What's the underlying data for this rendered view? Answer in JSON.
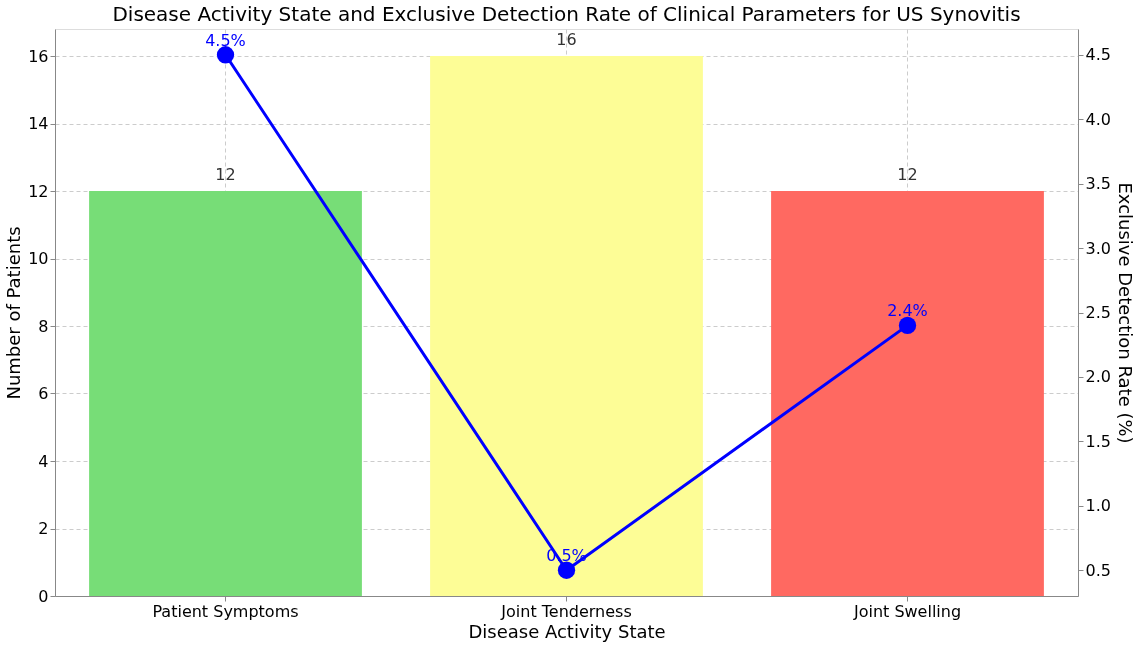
{
  "chart_data": {
    "type": "bar",
    "title": "Disease Activity State and Exclusive Detection Rate of Clinical Parameters for US Synovitis",
    "xlabel": "Disease Activity State",
    "ylabel": "Number of Patients",
    "y2label": "Exclusive Detection Rate (%)",
    "categories": [
      "Patient Symptoms",
      "Joint Tenderness",
      "Joint Swelling"
    ],
    "series": [
      {
        "colors": [
          "#77dd77",
          "#fdfd96",
          "#ff6961"
        ],
        "values": [
          12,
          16,
          12
        ]
      },
      {
        "type": "line",
        "axis": "y2",
        "color": "#0000ff",
        "values": [
          4.5,
          0.5,
          2.4
        ],
        "value_labels": [
          "4.5%",
          "0.5%",
          "2.4%"
        ],
        "marker": "circle",
        "line_style": "solid"
      }
    ],
    "data_labels": true,
    "ylim": [
      0,
      16.8
    ],
    "yticks": [
      0,
      2,
      4,
      6,
      8,
      10,
      12,
      14,
      16
    ],
    "y2lim": [
      0.3,
      4.7
    ],
    "y2ticks": [
      0.5,
      {
        "value": 1,
        "label": "1.0"
      },
      1.5,
      {
        "value": 2,
        "label": "2.0"
      },
      2.5,
      {
        "value": 3,
        "label": "3.0"
      },
      3.5,
      {
        "value": 4,
        "label": "4.0"
      },
      4.5
    ],
    "grid": true
  }
}
